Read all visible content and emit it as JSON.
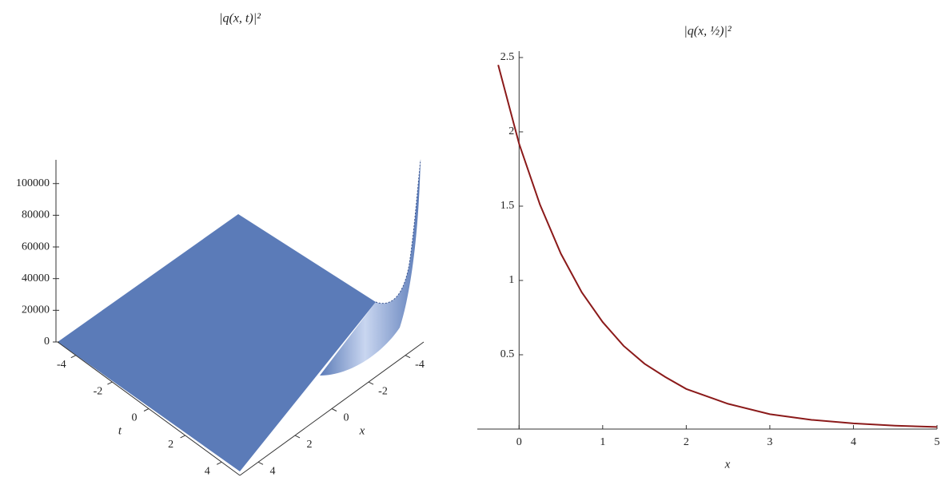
{
  "chart_data": [
    {
      "type": "surface",
      "title": "|q(x, t)|²",
      "xlabel": "x",
      "ylabel": "t",
      "xlim": [
        -5,
        5
      ],
      "xticks": [
        -4,
        -2,
        0,
        2,
        4
      ],
      "ylim": [
        -5,
        5
      ],
      "yticks": [
        -4,
        -2,
        0,
        2,
        4
      ],
      "zlim": [
        0,
        115000
      ],
      "zticks": [
        0,
        20000,
        40000,
        60000,
        80000,
        100000
      ],
      "color": "#5b7bb8"
    },
    {
      "type": "line",
      "title": "|q(x, ½)|²",
      "xlabel": "x",
      "x": [
        -0.25,
        0,
        0.25,
        0.5,
        0.75,
        1,
        1.25,
        1.5,
        1.75,
        2,
        2.5,
        3,
        3.5,
        4,
        4.5,
        5
      ],
      "series": [
        {
          "name": "|q(x, ½)|²",
          "color": "#8b1a1a",
          "values": [
            2.45,
            1.92,
            1.51,
            1.18,
            0.92,
            0.72,
            0.56,
            0.44,
            0.35,
            0.27,
            0.17,
            0.1,
            0.062,
            0.038,
            0.023,
            0.014
          ]
        }
      ],
      "xlim": [
        -0.5,
        5
      ],
      "xticks": [
        0,
        1,
        2,
        3,
        4,
        5
      ],
      "ylim": [
        0,
        2.5
      ],
      "yticks": [
        0.5,
        1,
        1.5,
        2,
        2.5
      ]
    }
  ]
}
